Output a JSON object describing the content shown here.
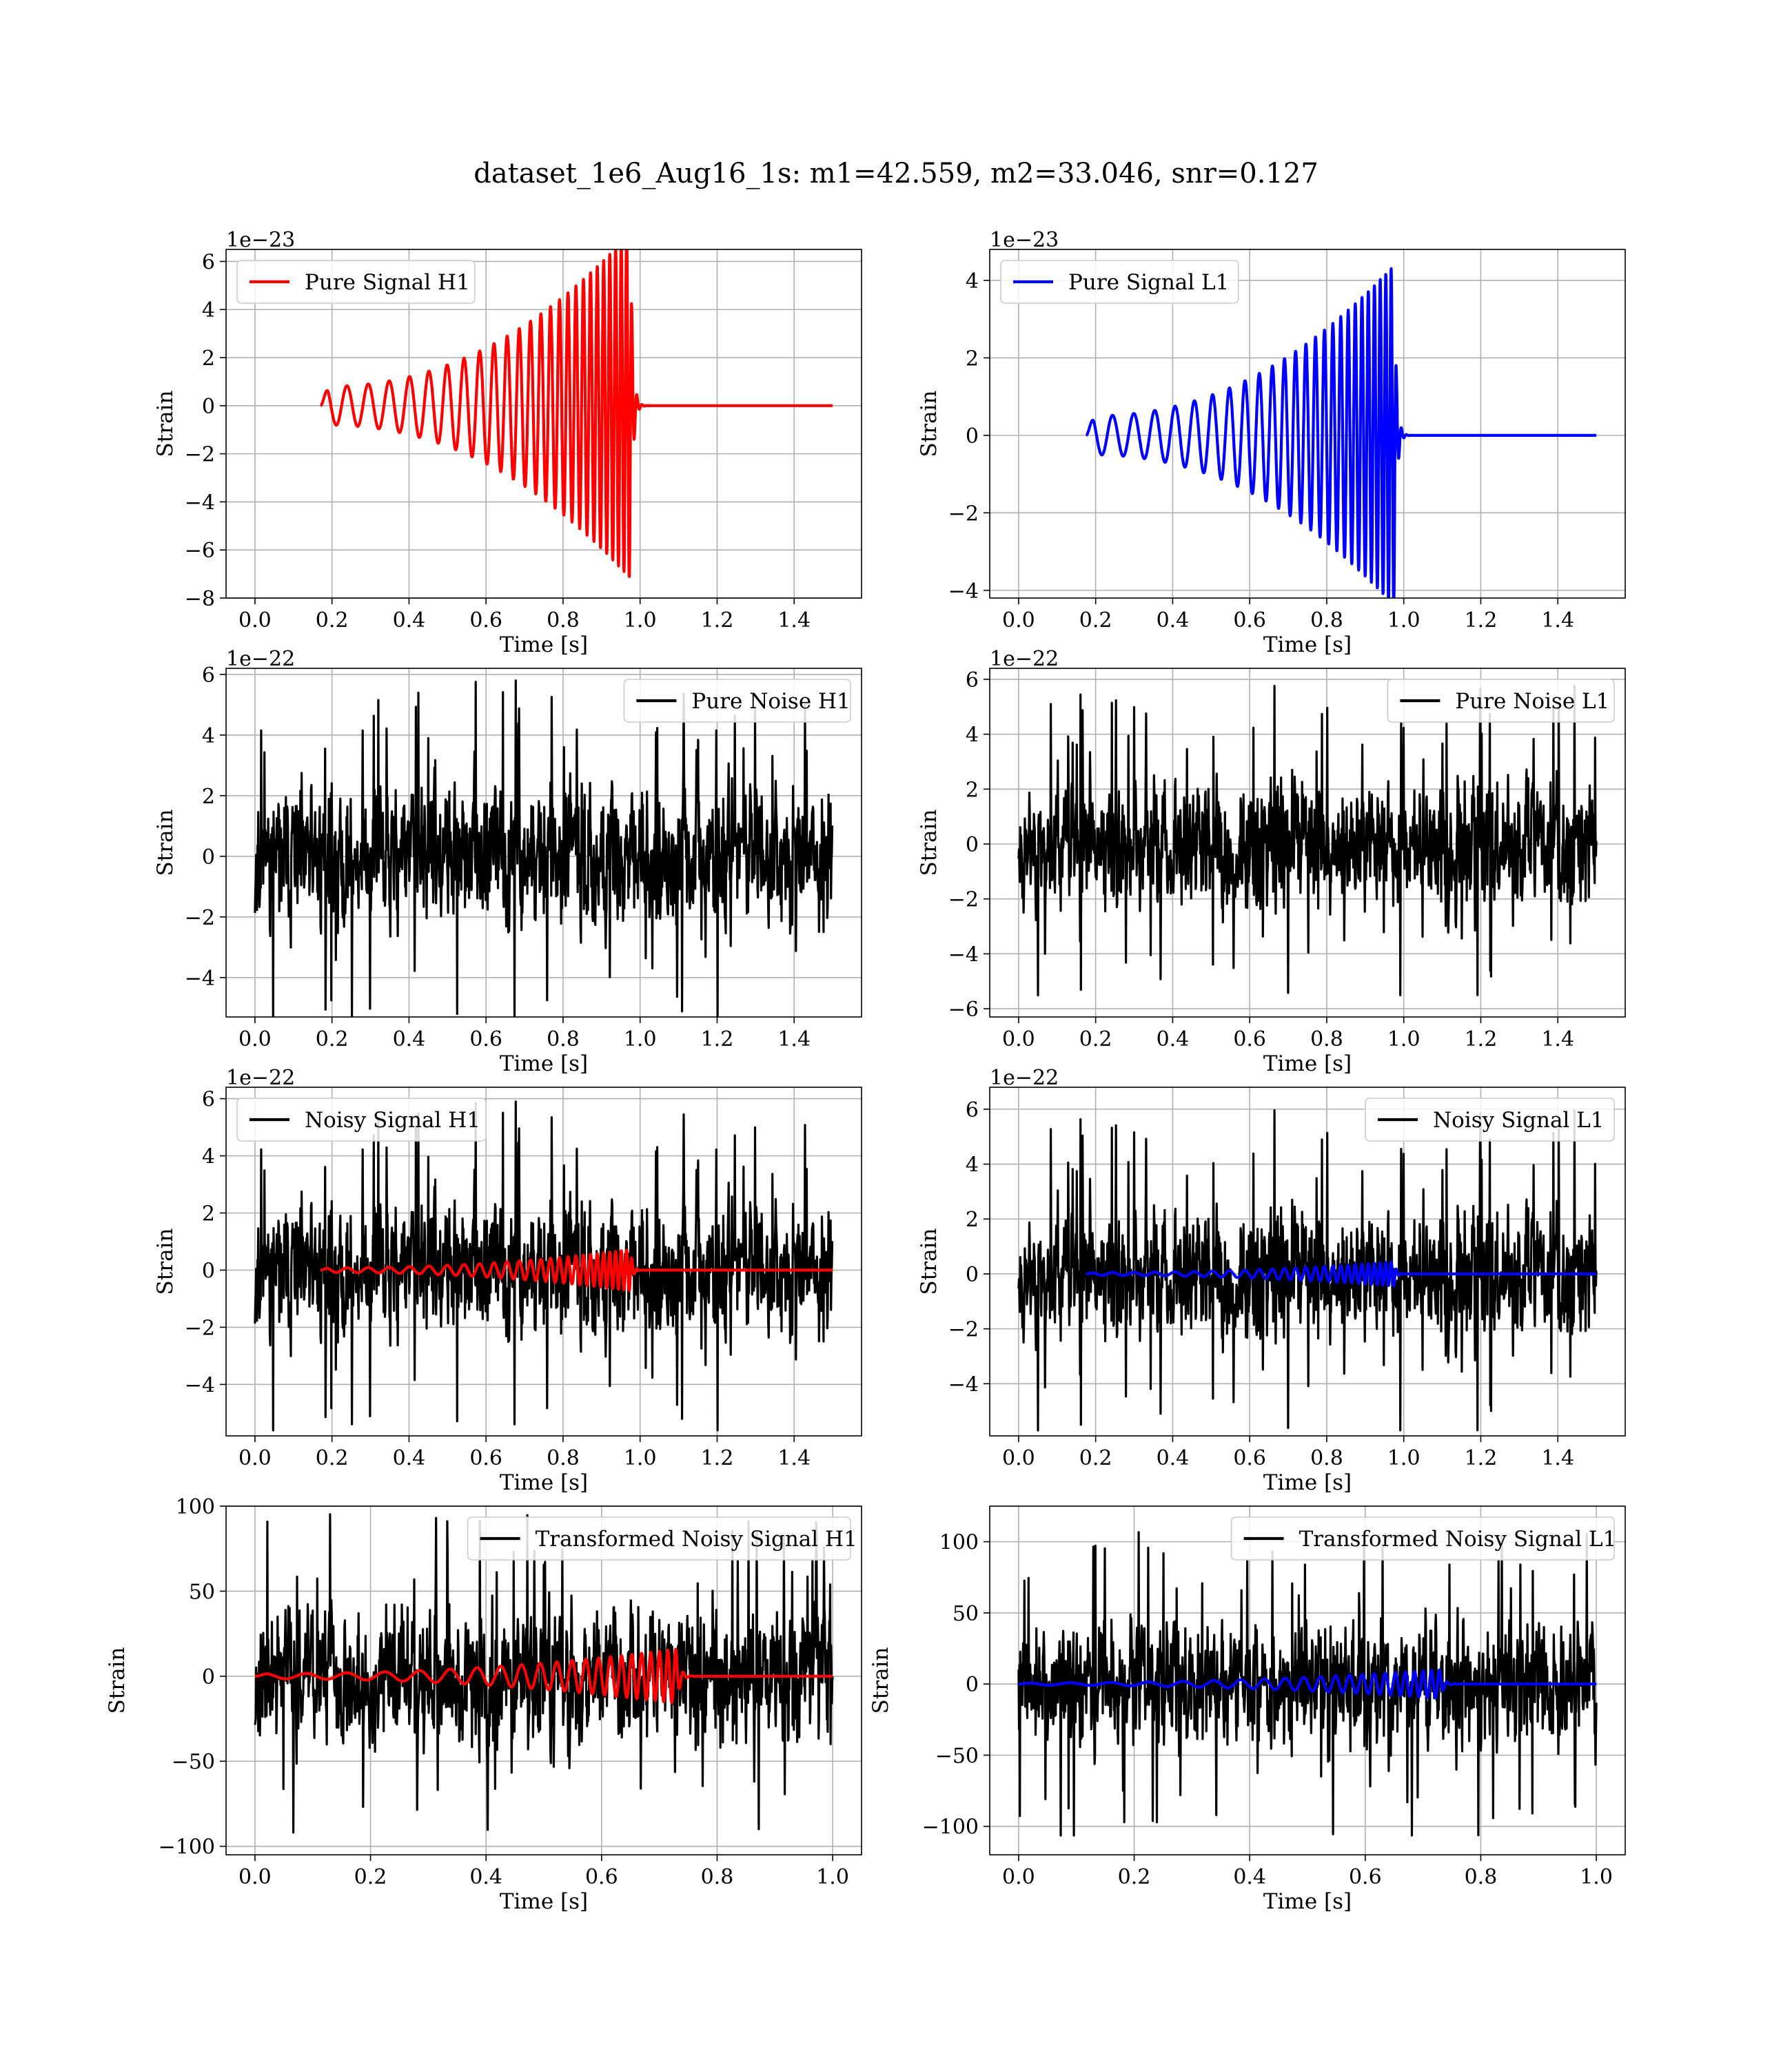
{
  "figure": {
    "title": "dataset_1e6_Aug16_1s: m1=42.559, m2=33.046, snr=0.127"
  },
  "chart_data": [
    {
      "type": "line",
      "legend": "Pure Signal H1",
      "legend_position": "upper-left",
      "xlabel": "Time [s]",
      "ylabel": "Strain",
      "offset_text": "1e−23",
      "xlim": [
        -0.075,
        1.575
      ],
      "ylim": [
        -8,
        6.5
      ],
      "xticks": [
        0.0,
        0.2,
        0.4,
        0.6,
        0.8,
        1.0,
        1.2,
        1.4
      ],
      "yticks": [
        -8,
        -6,
        -4,
        -2,
        0,
        2,
        4,
        6
      ],
      "grid": true,
      "series": [
        {
          "kind": "chirp",
          "color": "#ff0000",
          "t_start": 0.17,
          "t_merge": 0.975,
          "t_end": 1.5,
          "amp_start": 0.8,
          "amp_peak": 7.2,
          "f_start": 18,
          "f_end": 75
        }
      ]
    },
    {
      "type": "line",
      "legend": "Pure Signal L1",
      "legend_position": "upper-left",
      "xlabel": "Time [s]",
      "ylabel": "Strain",
      "offset_text": "1e−23",
      "xlim": [
        -0.075,
        1.575
      ],
      "ylim": [
        -4.2,
        4.8
      ],
      "xticks": [
        0.0,
        0.2,
        0.4,
        0.6,
        0.8,
        1.0,
        1.2,
        1.4
      ],
      "yticks": [
        -4,
        -2,
        0,
        2,
        4
      ],
      "grid": true,
      "series": [
        {
          "kind": "chirp",
          "color": "#0000ff",
          "t_start": 0.175,
          "t_merge": 0.975,
          "t_end": 1.5,
          "amp_start": 0.5,
          "amp_peak": 4.4,
          "f_start": 18,
          "f_end": 75
        }
      ]
    },
    {
      "type": "line",
      "legend": "Pure Noise H1",
      "legend_position": "upper-right",
      "xlabel": "Time [s]",
      "ylabel": "Strain",
      "offset_text": "1e−22",
      "xlim": [
        -0.075,
        1.575
      ],
      "ylim": [
        -5.3,
        6.2
      ],
      "xticks": [
        0.0,
        0.2,
        0.4,
        0.6,
        0.8,
        1.0,
        1.2,
        1.4
      ],
      "yticks": [
        -4,
        -2,
        0,
        2,
        4,
        6
      ],
      "grid": true,
      "series": [
        {
          "kind": "noise",
          "color": "#000000",
          "t_start": 0.0,
          "t_end": 1.5,
          "amplitude": 1.6,
          "peak": 5.8,
          "seed": 11
        }
      ]
    },
    {
      "type": "line",
      "legend": "Pure Noise L1",
      "legend_position": "upper-right",
      "xlabel": "Time [s]",
      "ylabel": "Strain",
      "offset_text": "1e−22",
      "xlim": [
        -0.075,
        1.575
      ],
      "ylim": [
        -6.3,
        6.4
      ],
      "xticks": [
        0.0,
        0.2,
        0.4,
        0.6,
        0.8,
        1.0,
        1.2,
        1.4
      ],
      "yticks": [
        -6,
        -4,
        -2,
        0,
        2,
        4,
        6
      ],
      "grid": true,
      "series": [
        {
          "kind": "noise",
          "color": "#000000",
          "t_start": 0.0,
          "t_end": 1.5,
          "amplitude": 1.6,
          "peak": 5.8,
          "seed": 23
        }
      ]
    },
    {
      "type": "line",
      "legend": "Noisy Signal H1",
      "legend_position": "upper-left",
      "xlabel": "Time [s]",
      "ylabel": "Strain",
      "offset_text": "1e−22",
      "xlim": [
        -0.075,
        1.575
      ],
      "ylim": [
        -5.8,
        6.4
      ],
      "xticks": [
        0.0,
        0.2,
        0.4,
        0.6,
        0.8,
        1.0,
        1.2,
        1.4
      ],
      "yticks": [
        -4,
        -2,
        0,
        2,
        4,
        6
      ],
      "grid": true,
      "series": [
        {
          "kind": "noise",
          "color": "#000000",
          "t_start": 0.0,
          "t_end": 1.5,
          "amplitude": 1.6,
          "peak": 5.9,
          "seed": 11
        },
        {
          "kind": "chirp",
          "color": "#ff0000",
          "t_start": 0.17,
          "t_merge": 0.975,
          "t_end": 1.5,
          "amp_start": 0.08,
          "amp_peak": 0.72,
          "f_start": 18,
          "f_end": 75
        }
      ]
    },
    {
      "type": "line",
      "legend": "Noisy Signal L1",
      "legend_position": "upper-right",
      "xlabel": "Time [s]",
      "ylabel": "Strain",
      "offset_text": "1e−22",
      "xlim": [
        -0.075,
        1.575
      ],
      "ylim": [
        -5.9,
        6.8
      ],
      "xticks": [
        0.0,
        0.2,
        0.4,
        0.6,
        0.8,
        1.0,
        1.2,
        1.4
      ],
      "yticks": [
        -4,
        -2,
        0,
        2,
        4,
        6
      ],
      "grid": true,
      "series": [
        {
          "kind": "noise",
          "color": "#000000",
          "t_start": 0.0,
          "t_end": 1.5,
          "amplitude": 1.6,
          "peak": 6.0,
          "seed": 23
        },
        {
          "kind": "chirp",
          "color": "#0000ff",
          "t_start": 0.175,
          "t_merge": 0.975,
          "t_end": 1.5,
          "amp_start": 0.05,
          "amp_peak": 0.44,
          "f_start": 18,
          "f_end": 75
        }
      ]
    },
    {
      "type": "line",
      "legend": "Transformed Noisy Signal H1",
      "legend_position": "upper-right",
      "xlabel": "Time [s]",
      "ylabel": "Strain",
      "offset_text": "",
      "xlim": [
        -0.05,
        1.05
      ],
      "ylim": [
        -105,
        100
      ],
      "xticks": [
        0.0,
        0.2,
        0.4,
        0.6,
        0.8,
        1.0
      ],
      "yticks": [
        -100,
        -50,
        0,
        50,
        100
      ],
      "grid": true,
      "series": [
        {
          "kind": "noise",
          "color": "#000000",
          "t_start": 0.0,
          "t_end": 1.0,
          "amplitude": 28,
          "peak": 98,
          "seed": 37
        },
        {
          "kind": "chirp",
          "color": "#ff0000",
          "t_start": 0.0,
          "t_merge": 0.73,
          "t_end": 1.0,
          "amp_start": 1.5,
          "amp_peak": 16,
          "f_start": 14,
          "f_end": 75
        }
      ]
    },
    {
      "type": "line",
      "legend": "Transformed Noisy Signal L1",
      "legend_position": "upper-right",
      "xlabel": "Time [s]",
      "ylabel": "Strain",
      "offset_text": "",
      "xlim": [
        -0.05,
        1.05
      ],
      "ylim": [
        -120,
        125
      ],
      "xticks": [
        0.0,
        0.2,
        0.4,
        0.6,
        0.8,
        1.0
      ],
      "yticks": [
        -100,
        -50,
        0,
        50,
        100
      ],
      "grid": true,
      "series": [
        {
          "kind": "noise",
          "color": "#000000",
          "t_start": 0.0,
          "t_end": 1.0,
          "amplitude": 28,
          "peak": 112,
          "seed": 41
        },
        {
          "kind": "chirp",
          "color": "#0000ff",
          "t_start": 0.0,
          "t_merge": 0.73,
          "t_end": 1.0,
          "amp_start": 0.8,
          "amp_peak": 10,
          "f_start": 14,
          "f_end": 75
        }
      ]
    }
  ]
}
